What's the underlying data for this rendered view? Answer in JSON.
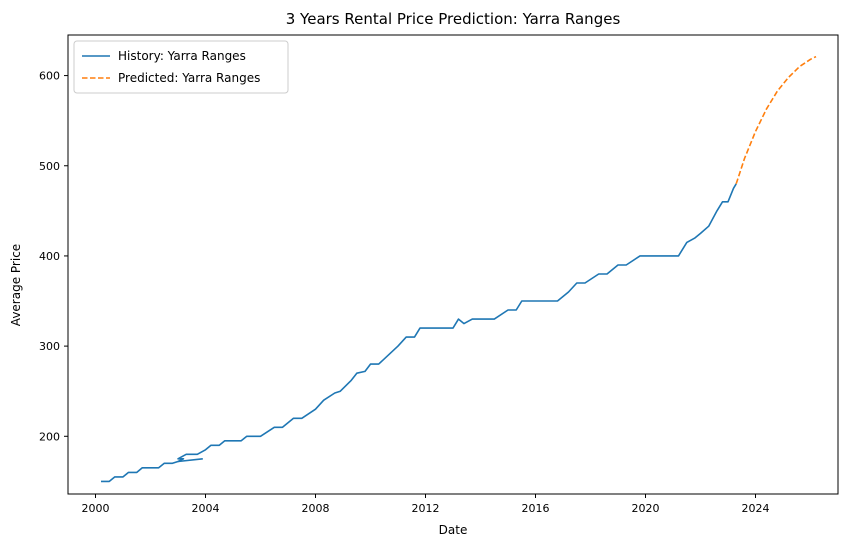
{
  "chart_data": {
    "type": "line",
    "title": "3 Years Rental Price Prediction: Yarra Ranges",
    "xlabel": "Date",
    "ylabel": "Average Price",
    "xlim": [
      1999.0,
      2027.0
    ],
    "ylim": [
      136,
      645
    ],
    "x_ticks": [
      2000,
      2004,
      2008,
      2012,
      2016,
      2020,
      2024
    ],
    "x_tick_labels": [
      "2000",
      "2004",
      "2008",
      "2012",
      "2016",
      "2020",
      "2024"
    ],
    "y_ticks": [
      200,
      300,
      400,
      500,
      600
    ],
    "y_tick_labels": [
      "200",
      "300",
      "400",
      "500",
      "600"
    ],
    "grid": false,
    "legend_position": "top-left",
    "series": [
      {
        "name": "History: Yarra Ranges",
        "style": "solid",
        "color": "#1f77b4",
        "points": [
          [
            2000.2,
            150
          ],
          [
            2000.5,
            150
          ],
          [
            2000.7,
            155
          ],
          [
            2001.0,
            155
          ],
          [
            2001.2,
            160
          ],
          [
            2001.5,
            160
          ],
          [
            2001.7,
            165
          ],
          [
            2002.0,
            165
          ],
          [
            2002.3,
            165
          ],
          [
            2002.5,
            170
          ],
          [
            2002.8,
            170
          ],
          [
            2003.0,
            172
          ],
          [
            2003.2,
            175
          ],
          [
            2003.0,
            175
          ],
          [
            2003.3,
            180
          ],
          [
            2003.7,
            180
          ],
          [
            2004.0,
            185
          ],
          [
            2004.2,
            190
          ],
          [
            2004.5,
            190
          ],
          [
            2004.7,
            195
          ],
          [
            2005.0,
            195
          ],
          [
            2005.3,
            195
          ],
          [
            2005.5,
            200
          ],
          [
            2006.0,
            200
          ],
          [
            2006.5,
            210
          ],
          [
            2006.8,
            210
          ],
          [
            2007.2,
            220
          ],
          [
            2007.5,
            220
          ],
          [
            2008.0,
            230
          ],
          [
            2008.3,
            240
          ],
          [
            2008.7,
            248
          ],
          [
            2008.9,
            250
          ],
          [
            2009.3,
            262
          ],
          [
            2009.5,
            270
          ],
          [
            2009.8,
            272
          ],
          [
            2010.0,
            280
          ],
          [
            2010.3,
            280
          ],
          [
            2011.0,
            300
          ],
          [
            2011.3,
            310
          ],
          [
            2011.6,
            310
          ],
          [
            2011.8,
            320
          ],
          [
            2012.2,
            320
          ],
          [
            2013.0,
            320
          ],
          [
            2013.2,
            330
          ],
          [
            2013.4,
            325
          ],
          [
            2013.7,
            330
          ],
          [
            2014.0,
            330
          ],
          [
            2014.5,
            330
          ],
          [
            2015.0,
            340
          ],
          [
            2015.3,
            340
          ],
          [
            2015.5,
            350
          ],
          [
            2016.0,
            350
          ],
          [
            2016.5,
            350
          ],
          [
            2016.8,
            350
          ],
          [
            2017.2,
            360
          ],
          [
            2017.5,
            370
          ],
          [
            2017.8,
            370
          ],
          [
            2018.3,
            380
          ],
          [
            2018.6,
            380
          ],
          [
            2019.0,
            390
          ],
          [
            2019.3,
            390
          ],
          [
            2019.8,
            400
          ],
          [
            2020.5,
            400
          ],
          [
            2021.2,
            400
          ],
          [
            2021.5,
            415
          ],
          [
            2021.8,
            420
          ],
          [
            2022.0,
            425
          ],
          [
            2022.3,
            433
          ],
          [
            2022.6,
            450
          ],
          [
            2022.8,
            460
          ],
          [
            2023.0,
            460
          ],
          [
            2023.2,
            475
          ],
          [
            2023.3,
            480
          ]
        ]
      },
      {
        "name": "Predicted: Yarra Ranges",
        "style": "dashed",
        "color": "#ff7f0e",
        "points": [
          [
            2023.3,
            480
          ],
          [
            2023.6,
            508
          ],
          [
            2024.0,
            538
          ],
          [
            2024.4,
            563
          ],
          [
            2024.8,
            583
          ],
          [
            2025.2,
            598
          ],
          [
            2025.6,
            610
          ],
          [
            2026.0,
            618
          ],
          [
            2026.2,
            621
          ]
        ]
      },
      {
        "name": "",
        "style": "solid",
        "color": "#1f77b4",
        "points": [
          [
            2003.0,
            172
          ],
          [
            2003.9,
            175
          ]
        ]
      }
    ]
  }
}
